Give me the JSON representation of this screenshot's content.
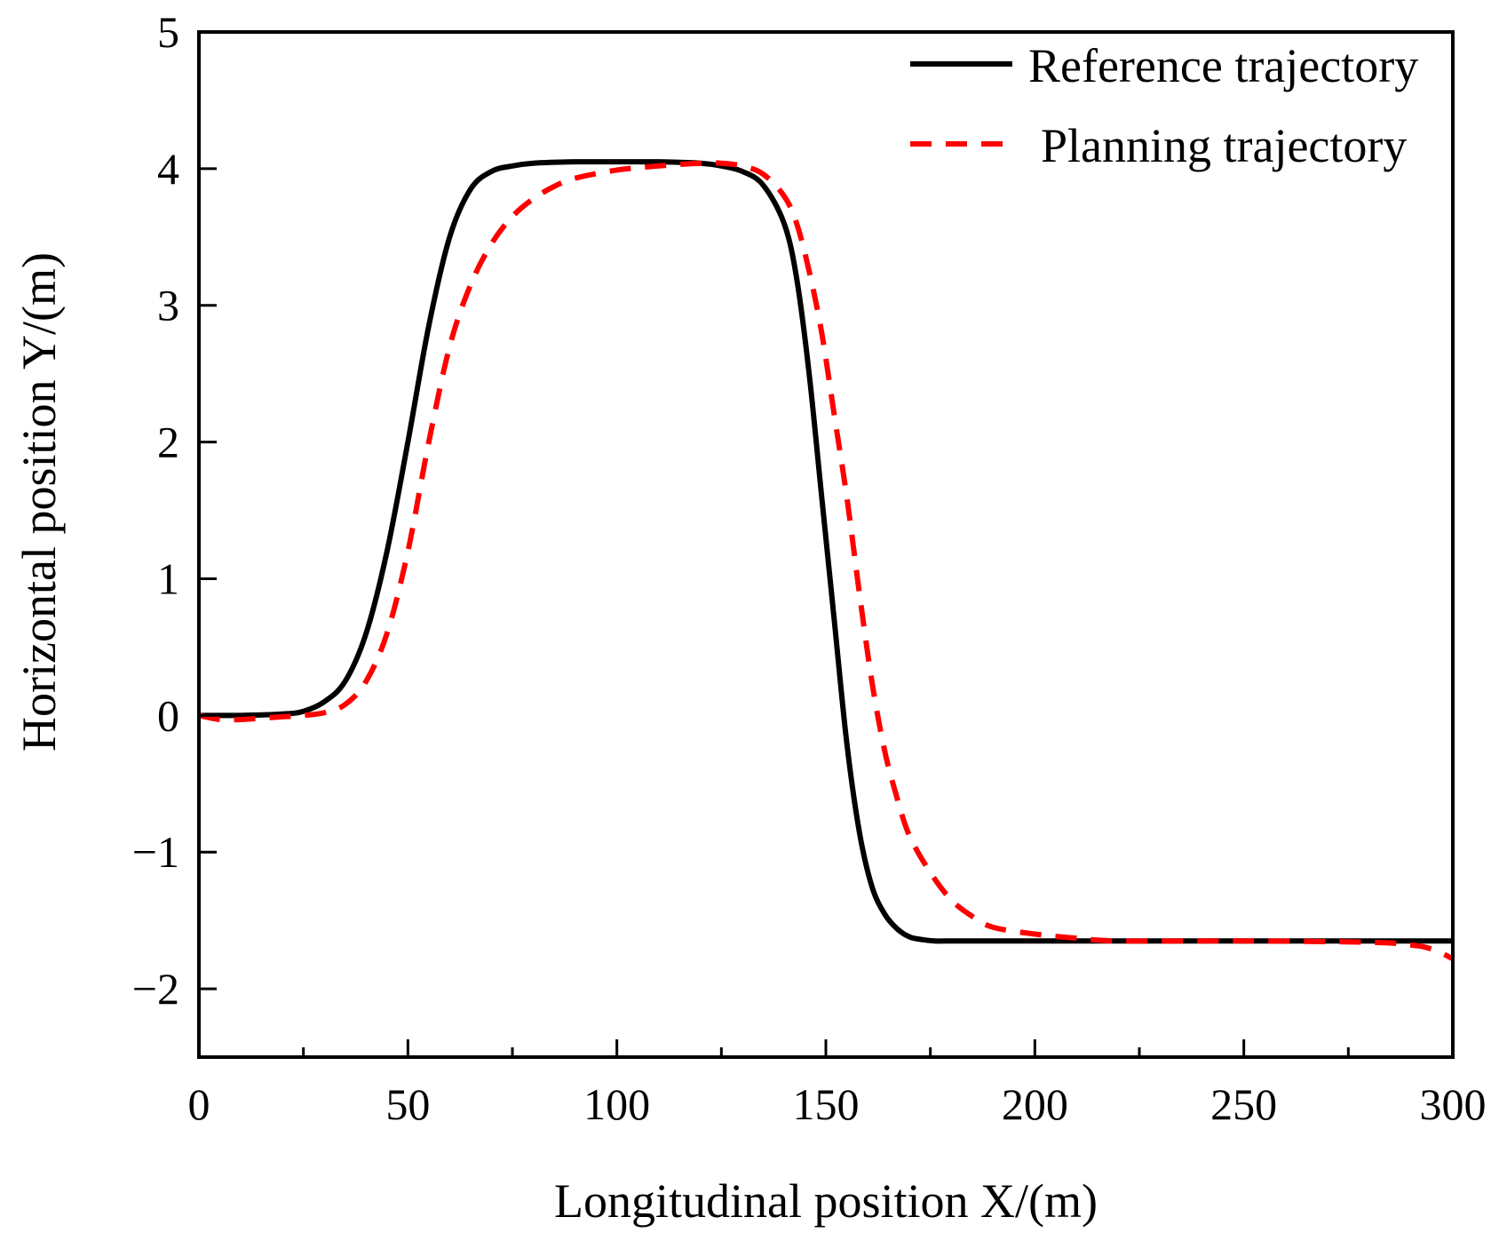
{
  "chart_data": {
    "type": "line",
    "title": "",
    "xlabel": "Longitudinal position X/(m)",
    "ylabel": "Horizontal position Y/(m)",
    "xlim": [
      0,
      300
    ],
    "ylim": [
      -2.5,
      5
    ],
    "xticks": [
      0,
      50,
      100,
      150,
      200,
      250,
      300
    ],
    "xtick_labels": [
      "0",
      "50",
      "100",
      "150",
      "200",
      "250",
      "300"
    ],
    "yticks": [
      -2,
      -1,
      0,
      1,
      2,
      3,
      4,
      5
    ],
    "ytick_labels": [
      "−2",
      "−1",
      "0",
      "1",
      "2",
      "3",
      "4",
      "5"
    ],
    "grid": false,
    "legend_position": "top-right",
    "series": [
      {
        "name": "Reference trajectory",
        "color": "#000000",
        "style": "solid",
        "x": [
          0,
          10,
          20,
          25,
          30,
          35,
          40,
          45,
          50,
          55,
          60,
          65,
          70,
          75,
          80,
          90,
          100,
          110,
          120,
          125,
          130,
          135,
          140,
          143,
          146,
          149,
          152,
          155,
          158,
          161,
          164,
          167,
          170,
          173,
          176,
          180,
          185,
          190,
          200,
          220,
          250,
          280,
          300
        ],
        "y": [
          0,
          0,
          0.01,
          0.03,
          0.1,
          0.25,
          0.6,
          1.2,
          2.0,
          2.85,
          3.5,
          3.85,
          3.98,
          4.02,
          4.04,
          4.05,
          4.05,
          4.05,
          4.04,
          4.02,
          3.98,
          3.88,
          3.6,
          3.2,
          2.5,
          1.6,
          0.7,
          -0.2,
          -0.85,
          -1.25,
          -1.45,
          -1.56,
          -1.62,
          -1.64,
          -1.65,
          -1.65,
          -1.65,
          -1.65,
          -1.65,
          -1.65,
          -1.65,
          -1.65,
          -1.65
        ]
      },
      {
        "name": "Planning trajectory",
        "color": "#ff0000",
        "style": "dashed",
        "x": [
          0,
          5,
          10,
          15,
          20,
          25,
          30,
          35,
          40,
          45,
          50,
          55,
          60,
          65,
          70,
          75,
          80,
          85,
          90,
          100,
          110,
          120,
          125,
          130,
          135,
          140,
          143,
          146,
          149,
          152,
          155,
          158,
          161,
          164,
          167,
          170,
          175,
          180,
          185,
          190,
          200,
          210,
          220,
          250,
          280,
          290,
          295,
          300
        ],
        "y": [
          0,
          -0.03,
          -0.03,
          -0.02,
          -0.01,
          0.0,
          0.02,
          0.08,
          0.25,
          0.6,
          1.2,
          2.0,
          2.7,
          3.15,
          3.45,
          3.65,
          3.78,
          3.87,
          3.93,
          3.99,
          4.02,
          4.04,
          4.04,
          4.02,
          3.96,
          3.8,
          3.6,
          3.25,
          2.8,
          2.2,
          1.6,
          0.9,
          0.25,
          -0.25,
          -0.6,
          -0.88,
          -1.15,
          -1.35,
          -1.47,
          -1.55,
          -1.6,
          -1.63,
          -1.65,
          -1.65,
          -1.66,
          -1.68,
          -1.71,
          -1.78
        ]
      }
    ]
  }
}
